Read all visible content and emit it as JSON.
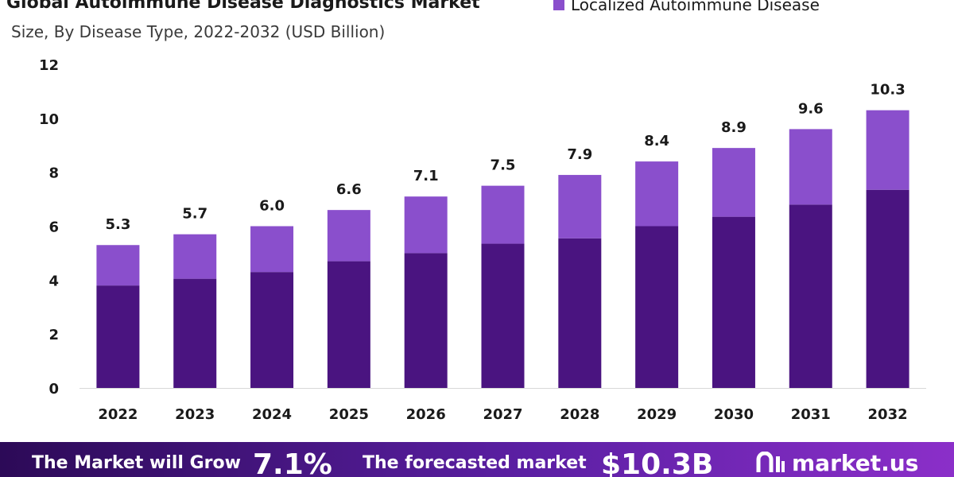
{
  "header": {
    "title": "Global Autoimmune Disease Diagnostics Market",
    "subtitle": "Size, By Disease Type, 2022-2032 (USD Billion)"
  },
  "legend": {
    "visible_label": "Localized Autoimmune Disease",
    "swatch_color": "#8a4fcc"
  },
  "colors": {
    "lower_segment": "#4a1480",
    "upper_segment": "#8a4fcc",
    "axis_text": "#1a1a1a",
    "banner_start": "#2c0a57",
    "banner_end": "#8b2fc9"
  },
  "chart_data": {
    "type": "bar",
    "stacked": true,
    "categories": [
      "2022",
      "2023",
      "2024",
      "2025",
      "2026",
      "2027",
      "2028",
      "2029",
      "2030",
      "2031",
      "2032"
    ],
    "series": [
      {
        "values": [
          3.8,
          4.05,
          4.3,
          4.7,
          5.0,
          5.35,
          5.55,
          6.0,
          6.35,
          6.8,
          7.35
        ]
      },
      {
        "name": "Localized Autoimmune Disease",
        "values": [
          1.5,
          1.65,
          1.7,
          1.9,
          2.1,
          2.15,
          2.35,
          2.4,
          2.55,
          2.8,
          2.95
        ]
      }
    ],
    "totals": [
      5.3,
      5.7,
      6.0,
      6.6,
      7.1,
      7.5,
      7.9,
      8.4,
      8.9,
      9.6,
      10.3
    ],
    "total_labels": [
      "5.3",
      "5.7",
      "6.0",
      "6.6",
      "7.1",
      "7.5",
      "7.9",
      "8.4",
      "8.9",
      "9.6",
      "10.3"
    ],
    "yticks": [
      0,
      2,
      4,
      6,
      8,
      10,
      12
    ],
    "ylim": [
      0,
      12
    ],
    "grid": false,
    "legend_position": "top-right"
  },
  "banner": {
    "grow_text": "The Market will Grow",
    "cagr": "7.1%",
    "forecast_text": "The forecasted market",
    "value": "$10.3B",
    "logo_text": "market.us"
  }
}
